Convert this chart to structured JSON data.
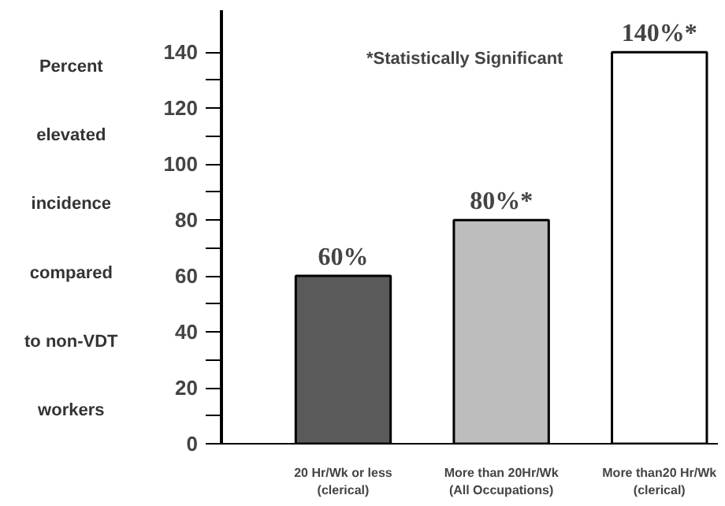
{
  "chart_data": {
    "type": "bar",
    "ylabel": "Percent\nelevated\nincidence\ncompared\nto non-VDT\nworkers",
    "categories": [
      "20 Hr/Wk or less\n(clerical)",
      "More than 20Hr/Wk\n(All Occupations)",
      "More than20 Hr/Wk\n(clerical)"
    ],
    "values": [
      60,
      80,
      140
    ],
    "colors": [
      "#5a5a5a",
      "#bdbdbd",
      "#ffffff"
    ],
    "value_labels": [
      "60%",
      "80%*",
      "140%*"
    ],
    "annotations": [
      "*Statistically Significant"
    ],
    "ylim": [
      0,
      155
    ],
    "yticks": [
      0,
      {
        "value": 10,
        "label": null
      },
      20,
      {
        "value": 30,
        "label": null
      },
      40,
      {
        "value": 50,
        "label": null
      },
      60,
      {
        "value": 70,
        "label": null
      },
      80,
      {
        "value": 90,
        "label": null
      },
      100,
      {
        "value": 110,
        "label": null
      },
      120,
      {
        "value": 130,
        "label": null
      },
      140
    ],
    "grid": false
  }
}
